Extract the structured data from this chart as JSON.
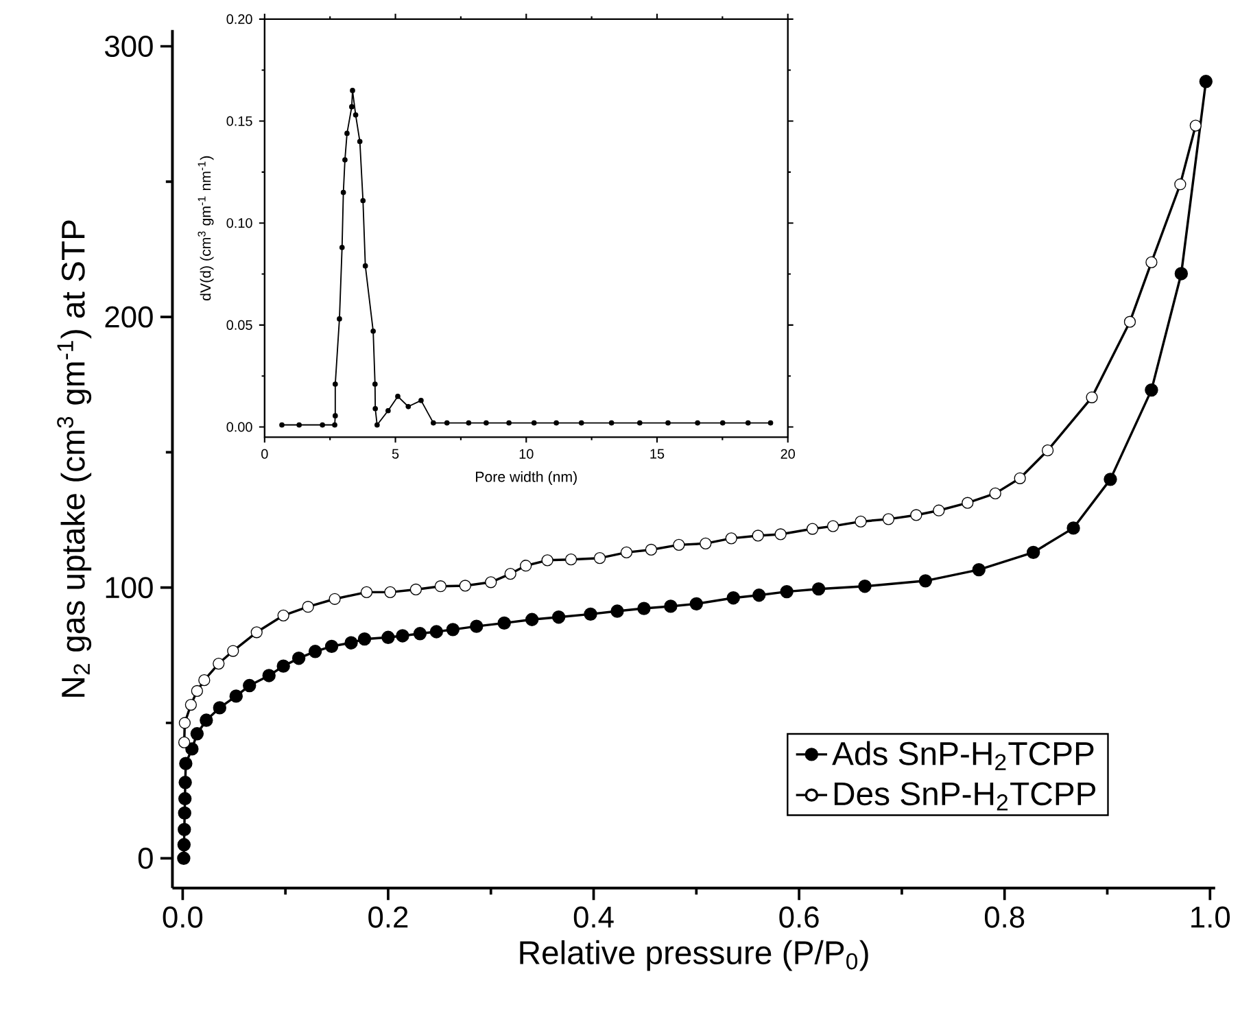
{
  "chart_data": [
    {
      "type": "line",
      "xlabel": "Relative pressure (P/P$_{0}$)",
      "ylabel": "N$_{2}$ gas uptake (cm$^{3}$ gm$^{-1}$) at STP",
      "xlim": [
        -0.01,
        1.005
      ],
      "ylim": [
        -11,
        306
      ],
      "xticks": [
        {
          "value": 0,
          "label": "0.0"
        },
        {
          "value": 0.1,
          "label": null
        },
        {
          "value": 0.2,
          "label": "0.2"
        },
        {
          "value": 0.3,
          "label": null
        },
        {
          "value": 0.4,
          "label": "0.4"
        },
        {
          "value": 0.5,
          "label": null
        },
        {
          "value": 0.6,
          "label": "0.6"
        },
        {
          "value": 0.7,
          "label": null
        },
        {
          "value": 0.8,
          "label": "0.8"
        },
        {
          "value": 0.9,
          "label": null
        },
        {
          "value": 1.0,
          "label": "1.0"
        }
      ],
      "yticks": [
        0,
        {
          "value": 50,
          "label": null
        },
        100,
        {
          "value": 150,
          "label": null
        },
        200,
        {
          "value": 250,
          "label": null
        },
        300
      ],
      "grid": false,
      "legend": "bottom right",
      "marker": "circle",
      "line_style": "solid",
      "series": [
        {
          "name": "Ads SnP-H$_{2}$TCPP",
          "color": "#000000",
          "x": [
            0.001,
            0.0013,
            0.0016,
            0.0019,
            0.0022,
            0.0025,
            0.003,
            0.009,
            0.014,
            0.023,
            0.036,
            0.052,
            0.065,
            0.084,
            0.098,
            0.113,
            0.129,
            0.145,
            0.164,
            0.177,
            0.2,
            0.214,
            0.231,
            0.247,
            0.263,
            0.286,
            0.313,
            0.34,
            0.366,
            0.397,
            0.423,
            0.449,
            0.475,
            0.5,
            0.536,
            0.561,
            0.588,
            0.619,
            0.664,
            0.723,
            0.775,
            0.828,
            0.867,
            0.903,
            0.943,
            0.972,
            0.996
          ],
          "values": [
            0,
            5,
            10.6,
            16.7,
            22,
            28,
            35,
            40.4,
            46,
            51,
            55.6,
            59.9,
            63.8,
            67.5,
            71,
            73.9,
            76.4,
            78.3,
            79.6,
            81,
            81.6,
            82.2,
            83,
            83.7,
            84.5,
            85.7,
            86.9,
            88.2,
            89.1,
            90.2,
            91.3,
            92.3,
            93.1,
            94,
            96.2,
            97.2,
            98.5,
            99.5,
            100.5,
            102.5,
            106.6,
            113,
            122,
            140,
            173,
            216,
            287
          ]
        },
        {
          "name": "Des SnP-H$_{2}$TCPP",
          "color": "#000000",
          "colors": [
            "#ffffff",
            "#ffffff",
            "#ffffff",
            "#ffffff",
            "#ffffff",
            "#ffffff",
            "#ffffff",
            "#ffffff",
            "#ffffff",
            "#ffffff",
            "#ffffff",
            "#ffffff",
            "#ffffff",
            "#ffffff",
            "#ffffff",
            "#ffffff",
            "#ffffff",
            "#ffffff",
            "#ffffff",
            "#ffffff",
            "#ffffff",
            "#ffffff",
            "#ffffff",
            "#ffffff",
            "#ffffff",
            "#ffffff",
            "#ffffff",
            "#ffffff",
            "#ffffff",
            "#ffffff",
            "#ffffff",
            "#ffffff",
            "#ffffff",
            "#ffffff",
            "#ffffff",
            "#ffffff",
            "#ffffff",
            "#ffffff",
            "#ffffff",
            "#ffffff",
            "#ffffff",
            "#ffffff",
            "#ffffff",
            "#ffffff"
          ],
          "x": [
            0.0015,
            0.002,
            0.008,
            0.014,
            0.021,
            0.035,
            0.049,
            0.072,
            0.098,
            0.122,
            0.148,
            0.179,
            0.202,
            0.227,
            0.251,
            0.275,
            0.3,
            0.319,
            0.334,
            0.355,
            0.378,
            0.406,
            0.432,
            0.456,
            0.483,
            0.509,
            0.534,
            0.56,
            0.582,
            0.613,
            0.633,
            0.66,
            0.687,
            0.714,
            0.736,
            0.764,
            0.791,
            0.815,
            0.842,
            0.885,
            0.922,
            0.943,
            0.971,
            0.986
          ],
          "values": [
            42.8,
            50,
            56.7,
            61.8,
            65.8,
            71.9,
            76.6,
            83.5,
            89.7,
            92.9,
            95.8,
            98.3,
            98.3,
            99.3,
            100.5,
            100.7,
            102,
            105.1,
            108.1,
            110.1,
            110.4,
            110.9,
            113,
            114,
            115.8,
            116.3,
            118.2,
            119.2,
            119.7,
            121.7,
            122.7,
            124.4,
            125.3,
            126.8,
            128.5,
            131.3,
            134.8,
            140.4,
            150.7,
            170.3,
            198.2,
            220.2,
            249,
            270.7
          ]
        }
      ]
    },
    {
      "type": "line",
      "xlabel": "Pore width (nm)",
      "ylabel": "dV(d) (cm$^{3}$ gm$^{-1}$ nm$^{-1}$)",
      "xlim": [
        0,
        20
      ],
      "ylim": [
        -0.005,
        0.2
      ],
      "xticks": [
        0,
        {
          "value": 2.5,
          "label": null
        },
        5,
        {
          "value": 7.5,
          "label": null
        },
        10,
        {
          "value": 12.5,
          "label": null
        },
        15,
        {
          "value": 17.5,
          "label": null
        },
        20
      ],
      "yticks": [
        {
          "value": 0,
          "label": "0.00"
        },
        {
          "value": 0.025,
          "label": null
        },
        {
          "value": 0.05,
          "label": "0.05"
        },
        {
          "value": 0.075,
          "label": null
        },
        {
          "value": 0.1,
          "label": "0.10"
        },
        {
          "value": 0.125,
          "label": null
        },
        {
          "value": 0.15,
          "label": "0.15"
        },
        {
          "value": 0.175,
          "label": null
        },
        {
          "value": 0.2,
          "label": "0.20"
        }
      ],
      "grid": false,
      "legend": false,
      "marker": "circle",
      "line_style": "solid",
      "series": [
        {
          "color": "#000000",
          "x": [
            0.66,
            1.32,
            2.21,
            2.68,
            2.7,
            2.7,
            2.86,
            2.96,
            3.01,
            3.07,
            3.15,
            3.33,
            3.36,
            3.48,
            3.64,
            3.76,
            3.85,
            4.15,
            4.22,
            4.23,
            4.3,
            4.72,
            5.09,
            5.49,
            5.98,
            6.45,
            6.97,
            7.8,
            8.47,
            9.34,
            10.3,
            11.15,
            12.11,
            13.26,
            14.34,
            15.42,
            16.55,
            17.51,
            18.48,
            19.34
          ],
          "values": [
            0.001,
            0.001,
            0.001,
            0.001,
            0.0055,
            0.021,
            0.053,
            0.088,
            0.115,
            0.131,
            0.144,
            0.157,
            0.165,
            0.153,
            0.14,
            0.111,
            0.079,
            0.047,
            0.021,
            0.009,
            0.001,
            0.008,
            0.015,
            0.01,
            0.013,
            0.002,
            0.002,
            0.002,
            0.002,
            0.002,
            0.002,
            0.002,
            0.002,
            0.002,
            0.002,
            0.002,
            0.002,
            0.002,
            0.002,
            0.002
          ]
        }
      ]
    }
  ]
}
